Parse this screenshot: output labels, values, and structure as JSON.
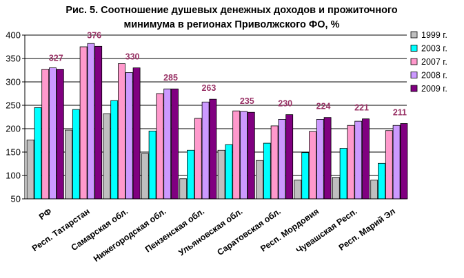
{
  "chart_data": {
    "type": "bar",
    "title_lines": [
      "Рис. 5. Соотношение душевых денежных доходов и прожиточного",
      "минимума в регионах Приволжского ФО, %"
    ],
    "categories": [
      "РФ",
      "Респ. Татарстан",
      "Самарская обл.",
      "Нижегородская обл.",
      "Пензенская обл.",
      "Ульяновская обл.",
      "Саратовская обл.",
      "Респ. Мордовия",
      "Чувашская Респ.",
      "Респ. Марий Эл"
    ],
    "series": [
      {
        "name": "1999 г.",
        "color": "#bfbfbf",
        "values": [
          176,
          197,
          232,
          147,
          93,
          154,
          132,
          90,
          96,
          90
        ]
      },
      {
        "name": "2003 г.",
        "color": "#00ffff",
        "values": [
          245,
          241,
          260,
          195,
          154,
          166,
          169,
          149,
          158,
          126
        ]
      },
      {
        "name": "2007 г.",
        "color": "#ff99cc",
        "values": [
          327,
          375,
          339,
          275,
          222,
          238,
          206,
          194,
          207,
          196
        ]
      },
      {
        "name": "2008 г.",
        "color": "#cc99ff",
        "values": [
          330,
          382,
          320,
          285,
          257,
          237,
          220,
          220,
          216,
          207
        ]
      },
      {
        "name": "2009 г.",
        "color": "#800080",
        "values": [
          327,
          376,
          330,
          285,
          263,
          235,
          230,
          224,
          221,
          211
        ]
      }
    ],
    "data_labels": [
      "327",
      "376",
      "330",
      "285",
      "263",
      "235",
      "230",
      "224",
      "221",
      "211"
    ],
    "data_label_color": "#993366",
    "yticks": [
      "50",
      "100",
      "150",
      "200",
      "250",
      "300",
      "350",
      "400"
    ],
    "ylim": [
      50,
      400
    ],
    "grid": true,
    "legend_position": "right"
  }
}
